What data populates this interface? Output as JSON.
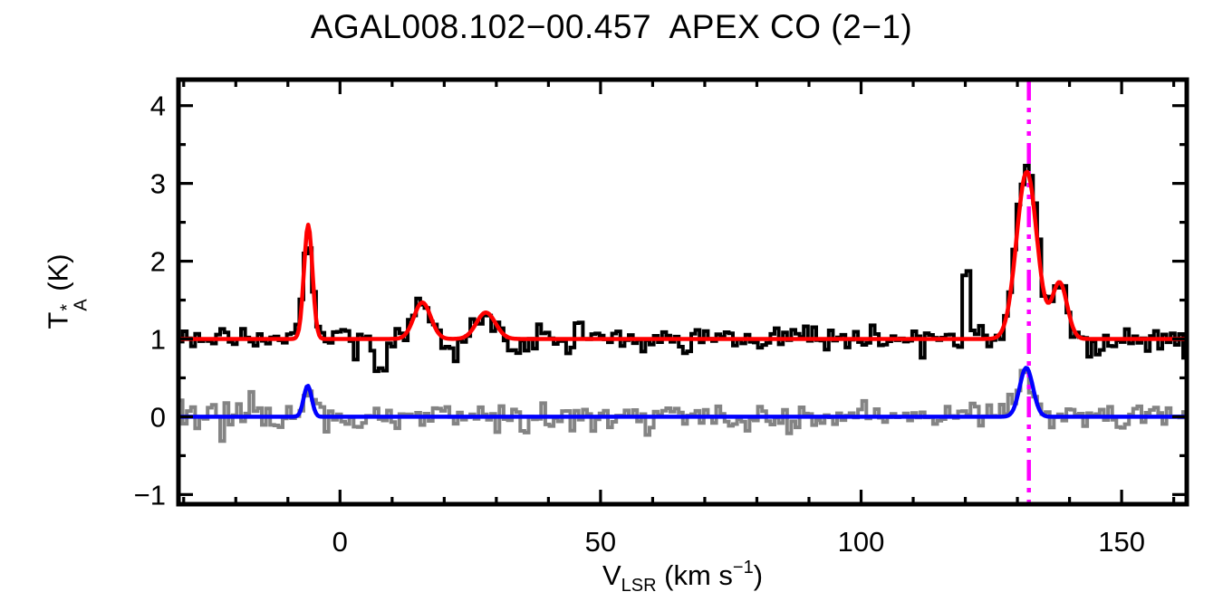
{
  "chart_data": {
    "type": "line",
    "title": "AGAL008.102−00.457  APEX CO (2−1)",
    "xlabel": {
      "symbol": "V",
      "subscript": "LSR",
      "unit_open": " (km s",
      "exponent": "−1",
      "unit_close": ")"
    },
    "ylabel": {
      "symbol": "T",
      "superscript": "*",
      "subscript": "A",
      "unit": " (K)"
    },
    "xlim": [
      -31,
      162.5
    ],
    "ylim": [
      -1.124,
      4.334
    ],
    "xticks": [
      0,
      50,
      100,
      150
    ],
    "x_minor_step": 10,
    "yticks": [
      -1,
      0,
      1,
      2,
      3,
      4
    ],
    "y_minor_step": 0.5,
    "grid": false,
    "legend": "none",
    "frame_color": "#000000",
    "background_color": "#ffffff",
    "channel_width_kms": 0.8,
    "vline": {
      "x": 132.2,
      "color": "#ff00ff",
      "style": "dash-dot-dot-dot",
      "label": "systemic-velocity"
    },
    "series": [
      {
        "name": "residual-spectrum",
        "style": "histogram",
        "color": "#848484",
        "baseline": 0.0,
        "noise_rms": 0.095,
        "noise_seed": 991,
        "components": [
          {
            "center": -6.2,
            "amplitude": 0.42,
            "fwhm": 1.9
          },
          {
            "center": 131.7,
            "amplitude": 0.64,
            "fwhm": 3.2
          }
        ],
        "features": []
      },
      {
        "name": "observed-spectrum",
        "style": "histogram",
        "color": "#000000",
        "baseline": 1.0,
        "noise_rms": 0.08,
        "noise_seed": 137,
        "components": [
          {
            "center": -6.1,
            "amplitude": 1.45,
            "fwhm": 1.9
          },
          {
            "center": 15.8,
            "amplitude": 0.5,
            "fwhm": 3.8
          },
          {
            "center": 28.0,
            "amplitude": 0.37,
            "fwhm": 4.3
          },
          {
            "center": 131.8,
            "amplitude": 2.28,
            "fwhm": 4.8
          },
          {
            "center": 138.1,
            "amplitude": 0.75,
            "fwhm": 3.4
          }
        ],
        "features": [
          {
            "type": "dip",
            "center": 7.8,
            "amplitude": -0.48,
            "fwhm": 2.4
          },
          {
            "type": "dip",
            "center": 21.8,
            "amplitude": -0.22,
            "fwhm": 2.8
          },
          {
            "type": "dip",
            "center": 33.2,
            "amplitude": -0.2,
            "fwhm": 3.0
          },
          {
            "type": "dip",
            "center": 145.8,
            "amplitude": -0.16,
            "fwhm": 3.0
          },
          {
            "type": "spike",
            "center": 120.2,
            "amplitude": 0.82
          }
        ]
      },
      {
        "name": "gaussian-fit",
        "style": "curve",
        "color": "#ff0000",
        "baseline": 1.0,
        "components": [
          {
            "center": -6.1,
            "amplitude": 1.47,
            "fwhm": 1.9
          },
          {
            "center": 15.8,
            "amplitude": 0.47,
            "fwhm": 3.8
          },
          {
            "center": 28.0,
            "amplitude": 0.34,
            "fwhm": 4.3
          },
          {
            "center": 131.8,
            "amplitude": 2.15,
            "fwhm": 4.6
          },
          {
            "center": 138.1,
            "amplitude": 0.72,
            "fwhm": 3.4
          }
        ]
      },
      {
        "name": "residual-fit",
        "style": "curve",
        "color": "#0000ff",
        "baseline": 0.0,
        "components": [
          {
            "center": -6.2,
            "amplitude": 0.4,
            "fwhm": 1.8
          },
          {
            "center": 131.7,
            "amplitude": 0.63,
            "fwhm": 3.0
          }
        ]
      }
    ]
  }
}
